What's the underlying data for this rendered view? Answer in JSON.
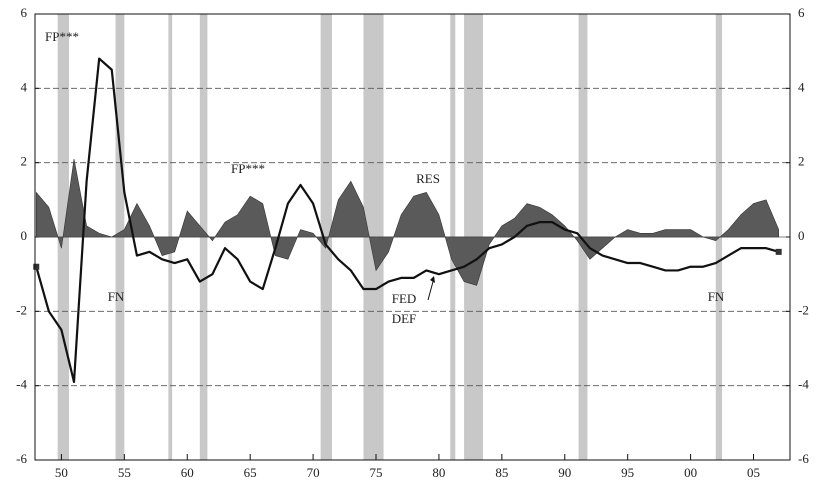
{
  "chart_data": {
    "type": "line",
    "x": [
      1948,
      1949,
      1950,
      1951,
      1952,
      1953,
      1954,
      1955,
      1956,
      1957,
      1958,
      1959,
      1960,
      1961,
      1962,
      1963,
      1964,
      1965,
      1966,
      1967,
      1968,
      1969,
      1970,
      1971,
      1972,
      1973,
      1974,
      1975,
      1976,
      1977,
      1978,
      1979,
      1980,
      1981,
      1982,
      1983,
      1984,
      1985,
      1986,
      1987,
      1988,
      1989,
      1990,
      1991,
      1992,
      1993,
      1994,
      1995,
      1996,
      1997,
      1998,
      1999,
      2000,
      2001,
      2002,
      2003,
      2004,
      2005,
      2006,
      2007
    ],
    "series": [
      {
        "name": "RES",
        "kind": "area",
        "color": "#5a5a5a",
        "values": [
          1.2,
          0.8,
          -0.3,
          2.1,
          0.3,
          0.1,
          0.0,
          0.2,
          0.9,
          0.3,
          -0.5,
          -0.4,
          0.7,
          0.3,
          -0.1,
          0.4,
          0.6,
          1.1,
          0.9,
          -0.5,
          -0.6,
          0.2,
          0.1,
          -0.3,
          1.0,
          1.5,
          0.8,
          -0.9,
          -0.4,
          0.6,
          1.1,
          1.2,
          0.6,
          -0.6,
          -1.2,
          -1.3,
          -0.2,
          0.3,
          0.5,
          0.9,
          0.8,
          0.6,
          0.3,
          -0.1,
          -0.6,
          -0.3,
          0.0,
          0.2,
          0.1,
          0.1,
          0.2,
          0.2,
          0.2,
          0.0,
          -0.1,
          0.2,
          0.6,
          0.9,
          1.0,
          0.2
        ]
      },
      {
        "name": "FED DEF",
        "kind": "line",
        "color": "#111111",
        "values": [
          -0.8,
          -2.0,
          -2.5,
          -3.9,
          1.5,
          4.8,
          4.5,
          1.2,
          -0.5,
          -0.4,
          -0.6,
          -0.7,
          -0.6,
          -1.2,
          -1.0,
          -0.3,
          -0.6,
          -1.2,
          -1.4,
          -0.3,
          0.9,
          1.4,
          0.9,
          -0.2,
          -0.6,
          -0.9,
          -1.4,
          -1.4,
          -1.2,
          -1.1,
          -1.1,
          -0.9,
          -1.0,
          -0.9,
          -0.8,
          -0.6,
          -0.3,
          -0.2,
          0.0,
          0.3,
          0.4,
          0.4,
          0.2,
          0.1,
          -0.3,
          -0.5,
          -0.6,
          -0.7,
          -0.7,
          -0.8,
          -0.9,
          -0.9,
          -0.8,
          -0.8,
          -0.7,
          -0.5,
          -0.3,
          -0.3,
          -0.3,
          -0.4
        ]
      }
    ],
    "shaded_periods": [
      [
        1949.7,
        1950.6
      ],
      [
        1954.3,
        1955.0
      ],
      [
        1958.5,
        1958.8
      ],
      [
        1961.0,
        1961.6
      ],
      [
        1970.6,
        1971.5
      ],
      [
        1974.0,
        1975.6
      ],
      [
        1980.9,
        1981.3
      ],
      [
        1982.0,
        1983.5
      ],
      [
        1991.1,
        1991.8
      ],
      [
        2002.0,
        2002.5
      ]
    ],
    "shade_color": "#c8c8c8",
    "annotations": [
      "FP***",
      "FP***",
      "RES",
      "FN",
      "FN",
      "FED",
      "DEF"
    ],
    "xlim": [
      1947.9,
      2007.9
    ],
    "xticks": [
      {
        "value": 1950,
        "label": "50"
      },
      {
        "value": 1955,
        "label": "55"
      },
      {
        "value": 1960,
        "label": "60"
      },
      {
        "value": 1965,
        "label": "65"
      },
      {
        "value": 1970,
        "label": "70"
      },
      {
        "value": 1975,
        "label": "75"
      },
      {
        "value": 1980,
        "label": "80"
      },
      {
        "value": 1985,
        "label": "85"
      },
      {
        "value": 1990,
        "label": "90"
      },
      {
        "value": 1995,
        "label": "95"
      },
      {
        "value": 2000,
        "label": "00"
      },
      {
        "value": 2005,
        "label": "05"
      }
    ],
    "ylim": [
      -6,
      6
    ],
    "yticks": [
      -6,
      -4,
      -2,
      0,
      2,
      4,
      6
    ],
    "grid": true
  }
}
